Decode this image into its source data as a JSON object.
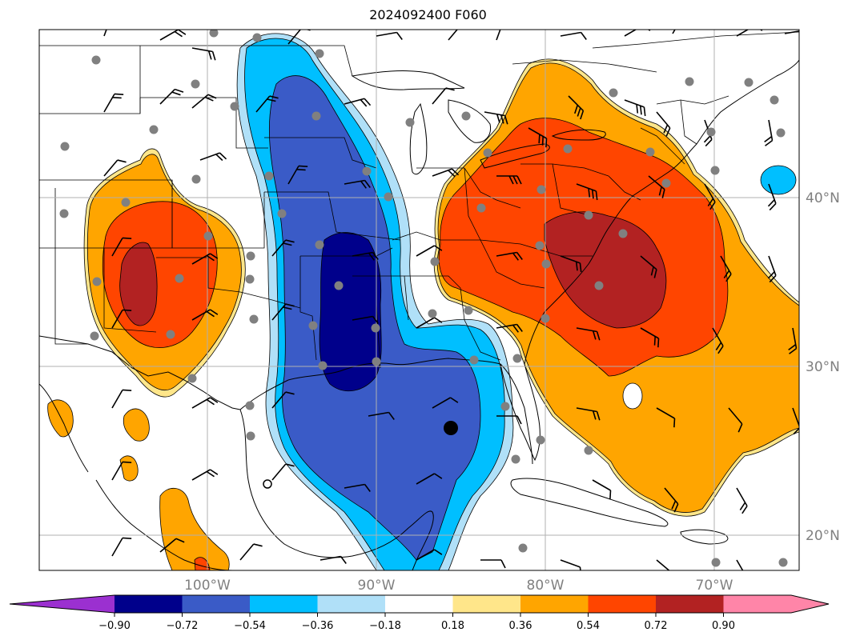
{
  "figure": {
    "title": "2024092400 F060"
  },
  "map": {
    "lon_labels": [
      "100°W",
      "90°W",
      "80°W",
      "70°W"
    ],
    "lat_labels": [
      "40°N",
      "30°N",
      "20°N"
    ],
    "gridline_color": "#b0b0b0",
    "label_color": "#808080",
    "station_dot_color": "#808080",
    "storm_center_marker": "black-dot"
  },
  "colorbar": {
    "levels": [
      "−0.90",
      "−0.72",
      "−0.54",
      "−0.36",
      "−0.18",
      "0.18",
      "0.36",
      "0.54",
      "0.72",
      "0.90"
    ],
    "colors": [
      "#9b30d0",
      "#00008b",
      "#3a5bc7",
      "#00bfff",
      "#b0e0f8",
      "#ffffff",
      "#ffe68a",
      "#ffa500",
      "#ff4500",
      "#b22222",
      "#ff85a8"
    ],
    "extend": "both"
  }
}
